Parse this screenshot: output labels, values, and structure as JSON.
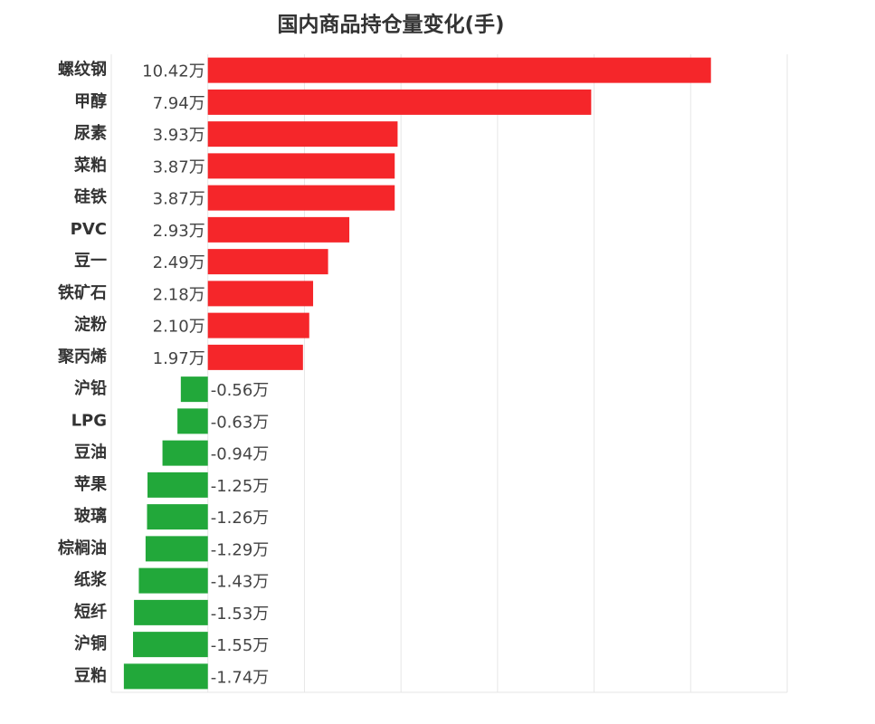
{
  "chart_data": {
    "type": "barh",
    "title": "国内商品持仓量变化(手)",
    "categories": [
      "螺纹钢",
      "甲醇",
      "尿素",
      "菜粕",
      "硅铁",
      "PVC",
      "豆一",
      "铁矿石",
      "淀粉",
      "聚丙烯",
      "沪铅",
      "LPG",
      "豆油",
      "苹果",
      "玻璃",
      "棕榈油",
      "纸浆",
      "短纤",
      "沪铜",
      "豆粕"
    ],
    "values": [
      10.42,
      7.94,
      3.93,
      3.87,
      3.87,
      2.93,
      2.49,
      2.18,
      2.1,
      1.97,
      -0.56,
      -0.63,
      -0.94,
      -1.25,
      -1.26,
      -1.29,
      -1.43,
      -1.53,
      -1.55,
      -1.74
    ],
    "value_labels": [
      "10.42万",
      "7.94万",
      "3.93万",
      "3.87万",
      "3.87万",
      "2.93万",
      "2.49万",
      "2.18万",
      "2.10万",
      "1.97万",
      "-0.56万",
      "-0.63万",
      "-0.94万",
      "-1.25万",
      "-1.26万",
      "-1.29万",
      "-1.43万",
      "-1.53万",
      "-1.55万",
      "-1.74万"
    ],
    "positive_color": "#f5262a",
    "negative_color": "#22a83a",
    "xlim": [
      -2,
      12
    ],
    "xticks": [
      -2,
      0,
      2,
      4,
      6,
      8,
      10,
      12
    ],
    "grid": true
  }
}
